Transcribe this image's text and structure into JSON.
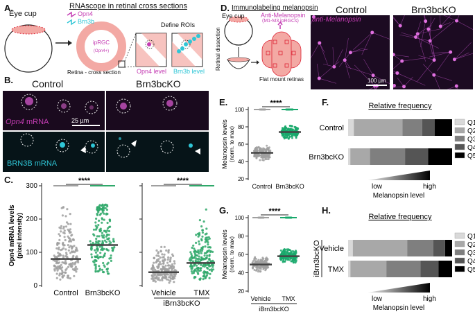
{
  "panels": {
    "A": "A.",
    "B": "B.",
    "C": "C.",
    "D": "D.",
    "E": "E.",
    "F": "F.",
    "G": "G.",
    "H": "H."
  },
  "panel_a": {
    "eye_cup": "Eye cup",
    "title": "RNAscope in retinal cross sections",
    "legend_opn4": "Opn4",
    "legend_brn3b": "Brn3b",
    "iprgc": "ipRGC",
    "iprgc_sub": "(Opn4+)",
    "define_rois": "Define ROIs",
    "retina_cross": "Retina - cross section",
    "opn4_level": "Opn4 level",
    "brn3b_level": "Brn3b level",
    "colors": {
      "magenta": "#c43cb3",
      "cyan": "#2fc6d6",
      "pink": "#f3a9a4"
    }
  },
  "panel_b": {
    "control": "Control",
    "ko": "Brn3bcKO",
    "opn4_mrna_italic": "Opn4",
    "opn4_mrna_rest": "mRNA",
    "brn3b_mrna": "BRN3B mRNA",
    "scale": "25 µm"
  },
  "panel_d": {
    "title": "Immunolabeling melanopsin",
    "eye_cup": "Eye cup",
    "anti_mel": "Anti-Melanopsin",
    "anti_mel_sub": "(M1-M3 ipRGCs)",
    "retinal_dissection": "Retinal dissection",
    "flat_mount": "Flat mount retinas",
    "control": "Control",
    "ko": "Brn3bcKO",
    "anti_label": "anti-Melanopsin",
    "scale": "100 µm"
  },
  "chart_data": [
    {
      "id": "C",
      "type": "scatter",
      "ylabel": "Opn4 mRNA levels",
      "ylabel2": "(pixel intensity)",
      "ylim": [
        0,
        300
      ],
      "yticks": [
        0,
        100,
        200,
        300
      ],
      "categories": [
        "Control",
        "Brn3bcKO",
        "Vehicle",
        "TMX"
      ],
      "group_label": "iBrn3bcKO",
      "medians": [
        80,
        122,
        40,
        68
      ],
      "significance": [
        "****",
        "****"
      ],
      "colors": [
        "#a0a0a0",
        "#2fa86a",
        "#a0a0a0",
        "#2fa86a"
      ]
    },
    {
      "id": "E",
      "type": "scatter",
      "ylabel": "Melanopsin levels",
      "ylabel2": "(norm. to max)",
      "ylim": [
        20,
        100
      ],
      "yticks": [
        20,
        40,
        60,
        80,
        100
      ],
      "categories": [
        "Control",
        "Brn3bcKO"
      ],
      "medians": [
        50,
        74
      ],
      "significance": [
        "****"
      ],
      "colors": [
        "#a0a0a0",
        "#17a86b"
      ]
    },
    {
      "id": "G",
      "type": "scatter",
      "ylabel": "Melanopsin levels",
      "ylabel2": "(norm. to max)",
      "ylim": [
        20,
        100
      ],
      "yticks": [
        20,
        40,
        60,
        80,
        100
      ],
      "categories": [
        "Vehicle",
        "TMX"
      ],
      "group_label": "iBrn3bcKO",
      "medians": [
        49,
        58
      ],
      "significance": [
        "****"
      ],
      "colors": [
        "#a0a0a0",
        "#17a86b"
      ]
    },
    {
      "id": "F",
      "type": "bar",
      "title": "Relative frequency",
      "categories": [
        "Control",
        "Brn3bcKO"
      ],
      "series": [
        {
          "name": "Q1",
          "values": [
            0.05,
            0.02
          ]
        },
        {
          "name": "Q2",
          "values": [
            0.42,
            0.18
          ]
        },
        {
          "name": "Q3",
          "values": [
            0.17,
            0.32
          ]
        },
        {
          "name": "Q4",
          "values": [
            0.11,
            0.21
          ]
        },
        {
          "name": "Q5",
          "values": [
            0.15,
            0.22
          ]
        }
      ],
      "xlabel_low": "low",
      "xlabel_high": "high",
      "xlabel": "Melanopsin level",
      "colors": [
        "#d9d9d9",
        "#a8a8a8",
        "#7f7f7f",
        "#555555",
        "#000000"
      ]
    },
    {
      "id": "H",
      "type": "bar",
      "title": "Relative frequency",
      "group_label": "iBrn3bcKO",
      "categories": [
        "Vehicle",
        "TMX"
      ],
      "series": [
        {
          "name": "Q1",
          "values": [
            0.04,
            0.02
          ]
        },
        {
          "name": "Q2",
          "values": [
            0.46,
            0.32
          ]
        },
        {
          "name": "Q3",
          "values": [
            0.22,
            0.3
          ]
        },
        {
          "name": "Q4",
          "values": [
            0.1,
            0.16
          ]
        },
        {
          "name": "Q5",
          "values": [
            0.06,
            0.12
          ]
        }
      ],
      "xlabel_low": "low",
      "xlabel_high": "high",
      "xlabel": "Melanopsin level",
      "colors": [
        "#d9d9d9",
        "#a8a8a8",
        "#7f7f7f",
        "#555555",
        "#000000"
      ]
    }
  ]
}
